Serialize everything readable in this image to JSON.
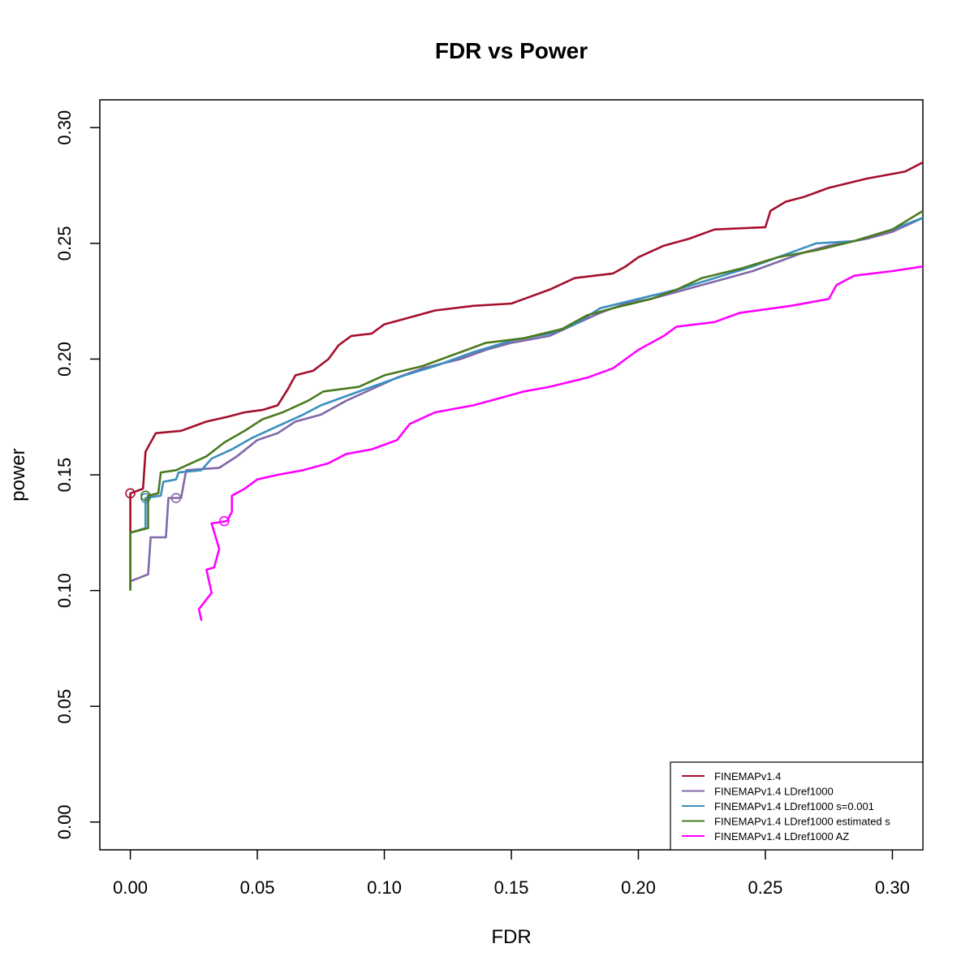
{
  "chart_data": {
    "type": "line",
    "title": "FDR vs Power",
    "xlabel": "FDR",
    "ylabel": "power",
    "xlim": [
      -0.012,
      0.312
    ],
    "ylim": [
      -0.012,
      0.312
    ],
    "xticks": [
      "0.00",
      "0.05",
      "0.10",
      "0.15",
      "0.20",
      "0.25",
      "0.30"
    ],
    "yticks": [
      "0.00",
      "0.05",
      "0.10",
      "0.15",
      "0.20",
      "0.25",
      "0.30"
    ],
    "grid": false,
    "legend_position": "bottom-right",
    "series": [
      {
        "name": "FINEMAPv1.4",
        "color": "#A50F2D",
        "marker": [
          0.0,
          0.142
        ],
        "points": [
          [
            0.0,
            0.1
          ],
          [
            0.0,
            0.142
          ],
          [
            0.005,
            0.144
          ],
          [
            0.006,
            0.16
          ],
          [
            0.01,
            0.168
          ],
          [
            0.02,
            0.169
          ],
          [
            0.025,
            0.171
          ],
          [
            0.03,
            0.173
          ],
          [
            0.038,
            0.175
          ],
          [
            0.045,
            0.177
          ],
          [
            0.052,
            0.178
          ],
          [
            0.058,
            0.18
          ],
          [
            0.062,
            0.187
          ],
          [
            0.065,
            0.193
          ],
          [
            0.072,
            0.195
          ],
          [
            0.078,
            0.2
          ],
          [
            0.082,
            0.206
          ],
          [
            0.087,
            0.21
          ],
          [
            0.095,
            0.211
          ],
          [
            0.1,
            0.215
          ],
          [
            0.11,
            0.218
          ],
          [
            0.12,
            0.221
          ],
          [
            0.135,
            0.223
          ],
          [
            0.15,
            0.224
          ],
          [
            0.155,
            0.226
          ],
          [
            0.165,
            0.23
          ],
          [
            0.175,
            0.235
          ],
          [
            0.19,
            0.237
          ],
          [
            0.195,
            0.24
          ],
          [
            0.2,
            0.244
          ],
          [
            0.21,
            0.249
          ],
          [
            0.22,
            0.252
          ],
          [
            0.23,
            0.256
          ],
          [
            0.25,
            0.257
          ],
          [
            0.252,
            0.264
          ],
          [
            0.258,
            0.268
          ],
          [
            0.265,
            0.27
          ],
          [
            0.275,
            0.274
          ],
          [
            0.29,
            0.278
          ],
          [
            0.305,
            0.281
          ],
          [
            0.312,
            0.285
          ]
        ]
      },
      {
        "name": "FINEMAPv1.4 LDref1000",
        "color": "#8068A8",
        "marker": [
          0.018,
          0.14
        ],
        "points": [
          [
            0.0,
            0.104
          ],
          [
            0.007,
            0.107
          ],
          [
            0.008,
            0.123
          ],
          [
            0.014,
            0.123
          ],
          [
            0.015,
            0.14
          ],
          [
            0.02,
            0.14
          ],
          [
            0.022,
            0.152
          ],
          [
            0.035,
            0.153
          ],
          [
            0.042,
            0.158
          ],
          [
            0.05,
            0.165
          ],
          [
            0.058,
            0.168
          ],
          [
            0.065,
            0.173
          ],
          [
            0.075,
            0.176
          ],
          [
            0.085,
            0.182
          ],
          [
            0.095,
            0.187
          ],
          [
            0.105,
            0.192
          ],
          [
            0.115,
            0.196
          ],
          [
            0.13,
            0.2
          ],
          [
            0.14,
            0.204
          ],
          [
            0.15,
            0.207
          ],
          [
            0.165,
            0.21
          ],
          [
            0.175,
            0.215
          ],
          [
            0.185,
            0.22
          ],
          [
            0.195,
            0.224
          ],
          [
            0.205,
            0.226
          ],
          [
            0.215,
            0.229
          ],
          [
            0.225,
            0.232
          ],
          [
            0.235,
            0.235
          ],
          [
            0.245,
            0.238
          ],
          [
            0.255,
            0.242
          ],
          [
            0.265,
            0.246
          ],
          [
            0.275,
            0.249
          ],
          [
            0.29,
            0.252
          ],
          [
            0.3,
            0.255
          ],
          [
            0.312,
            0.261
          ]
        ]
      },
      {
        "name": "FINEMAPv1.4 LDref1000 s=0.001",
        "color": "#3A8FBF",
        "marker": [
          0.006,
          0.14
        ],
        "points": [
          [
            0.0,
            0.125
          ],
          [
            0.006,
            0.127
          ],
          [
            0.006,
            0.14
          ],
          [
            0.012,
            0.141
          ],
          [
            0.013,
            0.147
          ],
          [
            0.018,
            0.148
          ],
          [
            0.019,
            0.151
          ],
          [
            0.028,
            0.152
          ],
          [
            0.032,
            0.157
          ],
          [
            0.04,
            0.161
          ],
          [
            0.048,
            0.166
          ],
          [
            0.058,
            0.171
          ],
          [
            0.068,
            0.176
          ],
          [
            0.075,
            0.18
          ],
          [
            0.085,
            0.184
          ],
          [
            0.095,
            0.188
          ],
          [
            0.108,
            0.193
          ],
          [
            0.12,
            0.197
          ],
          [
            0.135,
            0.203
          ],
          [
            0.15,
            0.208
          ],
          [
            0.165,
            0.211
          ],
          [
            0.175,
            0.215
          ],
          [
            0.185,
            0.222
          ],
          [
            0.2,
            0.226
          ],
          [
            0.215,
            0.23
          ],
          [
            0.23,
            0.235
          ],
          [
            0.245,
            0.24
          ],
          [
            0.26,
            0.246
          ],
          [
            0.27,
            0.25
          ],
          [
            0.285,
            0.251
          ],
          [
            0.3,
            0.256
          ],
          [
            0.312,
            0.261
          ]
        ]
      },
      {
        "name": "FINEMAPv1.4 LDref1000 estimated s",
        "color": "#4A7A1E",
        "marker": [
          0.006,
          0.141
        ],
        "points": [
          [
            0.0,
            0.1
          ],
          [
            0.0,
            0.125
          ],
          [
            0.007,
            0.127
          ],
          [
            0.007,
            0.141
          ],
          [
            0.011,
            0.142
          ],
          [
            0.012,
            0.151
          ],
          [
            0.018,
            0.152
          ],
          [
            0.022,
            0.154
          ],
          [
            0.03,
            0.158
          ],
          [
            0.037,
            0.164
          ],
          [
            0.045,
            0.169
          ],
          [
            0.052,
            0.174
          ],
          [
            0.06,
            0.177
          ],
          [
            0.07,
            0.182
          ],
          [
            0.076,
            0.186
          ],
          [
            0.09,
            0.188
          ],
          [
            0.1,
            0.193
          ],
          [
            0.115,
            0.197
          ],
          [
            0.13,
            0.203
          ],
          [
            0.14,
            0.207
          ],
          [
            0.155,
            0.209
          ],
          [
            0.17,
            0.213
          ],
          [
            0.18,
            0.219
          ],
          [
            0.19,
            0.222
          ],
          [
            0.205,
            0.226
          ],
          [
            0.215,
            0.23
          ],
          [
            0.225,
            0.235
          ],
          [
            0.24,
            0.239
          ],
          [
            0.255,
            0.244
          ],
          [
            0.27,
            0.247
          ],
          [
            0.285,
            0.251
          ],
          [
            0.3,
            0.256
          ],
          [
            0.312,
            0.264
          ]
        ]
      },
      {
        "name": "FINEMAPv1.4 LDref1000 AZ",
        "color": "#FF00FF",
        "marker": [
          0.037,
          0.13
        ],
        "points": [
          [
            0.028,
            0.087
          ],
          [
            0.027,
            0.092
          ],
          [
            0.032,
            0.099
          ],
          [
            0.03,
            0.109
          ],
          [
            0.033,
            0.11
          ],
          [
            0.035,
            0.118
          ],
          [
            0.032,
            0.129
          ],
          [
            0.038,
            0.13
          ],
          [
            0.04,
            0.134
          ],
          [
            0.04,
            0.141
          ],
          [
            0.045,
            0.144
          ],
          [
            0.05,
            0.148
          ],
          [
            0.058,
            0.15
          ],
          [
            0.068,
            0.152
          ],
          [
            0.078,
            0.155
          ],
          [
            0.085,
            0.159
          ],
          [
            0.095,
            0.161
          ],
          [
            0.105,
            0.165
          ],
          [
            0.11,
            0.172
          ],
          [
            0.12,
            0.177
          ],
          [
            0.135,
            0.18
          ],
          [
            0.145,
            0.183
          ],
          [
            0.155,
            0.186
          ],
          [
            0.165,
            0.188
          ],
          [
            0.18,
            0.192
          ],
          [
            0.19,
            0.196
          ],
          [
            0.2,
            0.204
          ],
          [
            0.21,
            0.21
          ],
          [
            0.215,
            0.214
          ],
          [
            0.23,
            0.216
          ],
          [
            0.24,
            0.22
          ],
          [
            0.26,
            0.223
          ],
          [
            0.275,
            0.226
          ],
          [
            0.278,
            0.232
          ],
          [
            0.285,
            0.236
          ],
          [
            0.3,
            0.238
          ],
          [
            0.312,
            0.24
          ]
        ]
      }
    ]
  }
}
